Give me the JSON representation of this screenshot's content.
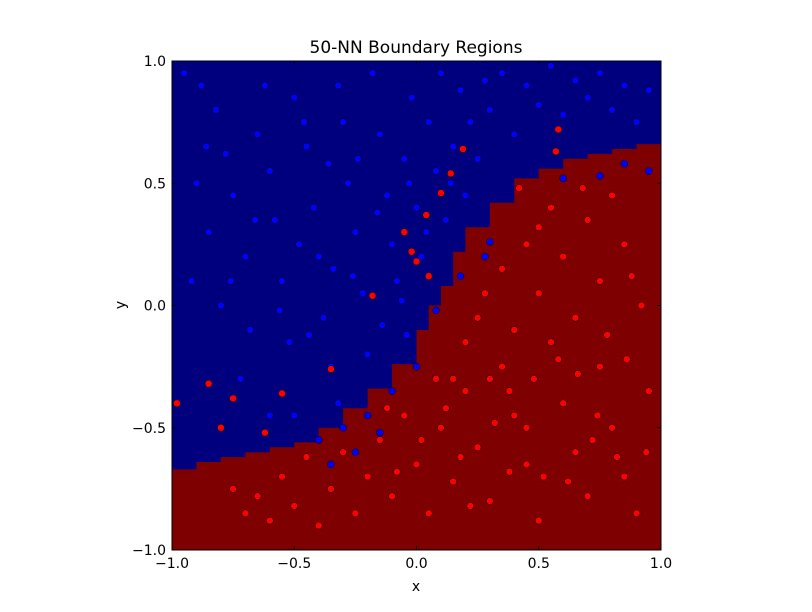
{
  "chart_data": {
    "type": "scatter",
    "title": "50-NN Boundary Regions",
    "xlabel": "x",
    "ylabel": "y",
    "xlim": [
      -1.0,
      1.0
    ],
    "ylim": [
      -1.0,
      1.0
    ],
    "x_ticks": [
      "−1.0",
      "−0.5",
      "0.0",
      "0.5",
      "1.0"
    ],
    "y_ticks": [
      "−1.0",
      "−0.5",
      "0.0",
      "0.5",
      "1.0"
    ],
    "x_tick_values": [
      -1.0,
      -0.5,
      0.0,
      0.5,
      1.0
    ],
    "y_tick_values": [
      -1.0,
      -0.5,
      0.0,
      0.5,
      1.0
    ],
    "grid": false,
    "background": {
      "type": "decision_regions",
      "upper_region_color": "#00007f",
      "lower_region_color": "#7f0000",
      "boundary": [
        [
          -1.0,
          -0.67
        ],
        [
          -0.9,
          -0.64
        ],
        [
          -0.8,
          -0.62
        ],
        [
          -0.7,
          -0.6
        ],
        [
          -0.6,
          -0.58
        ],
        [
          -0.5,
          -0.56
        ],
        [
          -0.4,
          -0.5
        ],
        [
          -0.3,
          -0.42
        ],
        [
          -0.2,
          -0.34
        ],
        [
          -0.1,
          -0.24
        ],
        [
          0.0,
          -0.1
        ],
        [
          0.05,
          0.0
        ],
        [
          0.1,
          0.08
        ],
        [
          0.15,
          0.22
        ],
        [
          0.2,
          0.32
        ],
        [
          0.3,
          0.42
        ],
        [
          0.4,
          0.52
        ],
        [
          0.5,
          0.56
        ],
        [
          0.6,
          0.6
        ],
        [
          0.7,
          0.62
        ],
        [
          0.8,
          0.64
        ],
        [
          0.9,
          0.66
        ],
        [
          1.0,
          0.7
        ]
      ]
    },
    "series": [
      {
        "color": "#0000ff",
        "points": [
          [
            -0.95,
            0.95
          ],
          [
            -0.88,
            0.9
          ],
          [
            -0.82,
            0.8
          ],
          [
            -0.78,
            0.62
          ],
          [
            -0.9,
            0.5
          ],
          [
            -0.85,
            0.3
          ],
          [
            -0.92,
            0.1
          ],
          [
            -0.8,
            0.0
          ],
          [
            -0.75,
            0.45
          ],
          [
            -0.7,
            0.2
          ],
          [
            -0.68,
            -0.1
          ],
          [
            -0.72,
            -0.3
          ],
          [
            -0.65,
            0.7
          ],
          [
            -0.6,
            0.55
          ],
          [
            -0.58,
            0.35
          ],
          [
            -0.55,
            0.1
          ],
          [
            -0.52,
            -0.15
          ],
          [
            -0.5,
            0.85
          ],
          [
            -0.45,
            0.65
          ],
          [
            -0.42,
            0.4
          ],
          [
            -0.4,
            0.2
          ],
          [
            -0.38,
            -0.05
          ],
          [
            -0.35,
            -0.25
          ],
          [
            -0.32,
            0.9
          ],
          [
            -0.3,
            0.75
          ],
          [
            -0.28,
            0.5
          ],
          [
            -0.25,
            0.3
          ],
          [
            -0.22,
            0.05
          ],
          [
            -0.2,
            -0.2
          ],
          [
            -0.18,
            0.95
          ],
          [
            -0.15,
            0.7
          ],
          [
            -0.12,
            0.45
          ],
          [
            -0.1,
            0.25
          ],
          [
            -0.08,
            0.1
          ],
          [
            -0.05,
            0.6
          ],
          [
            -0.02,
            0.85
          ],
          [
            0.0,
            0.4
          ],
          [
            0.02,
            0.2
          ],
          [
            0.05,
            0.75
          ],
          [
            0.08,
            0.55
          ],
          [
            0.1,
            0.95
          ],
          [
            0.12,
            0.35
          ],
          [
            0.15,
            0.65
          ],
          [
            0.18,
            0.88
          ],
          [
            0.2,
            0.45
          ],
          [
            0.22,
            0.75
          ],
          [
            0.25,
            0.6
          ],
          [
            0.28,
            0.92
          ],
          [
            0.3,
            0.8
          ],
          [
            0.35,
            0.95
          ],
          [
            0.4,
            0.7
          ],
          [
            0.45,
            0.9
          ],
          [
            0.5,
            0.82
          ],
          [
            0.55,
            0.98
          ],
          [
            0.6,
            0.78
          ],
          [
            0.65,
            0.92
          ],
          [
            0.7,
            0.85
          ],
          [
            0.75,
            0.95
          ],
          [
            0.8,
            0.8
          ],
          [
            0.85,
            0.9
          ],
          [
            0.9,
            0.75
          ],
          [
            0.95,
            0.88
          ],
          [
            -0.62,
            0.9
          ],
          [
            -0.48,
            0.25
          ],
          [
            -0.44,
            -0.12
          ],
          [
            -0.36,
            0.58
          ],
          [
            -0.26,
            0.12
          ],
          [
            -0.16,
            0.38
          ],
          [
            -0.06,
            0.02
          ],
          [
            -0.03,
            0.5
          ],
          [
            0.04,
            0.3
          ],
          [
            0.14,
            0.5
          ],
          [
            -0.86,
            0.65
          ],
          [
            -0.76,
            0.1
          ],
          [
            -0.66,
            0.35
          ],
          [
            -0.56,
            -0.02
          ],
          [
            -0.46,
            0.75
          ],
          [
            -0.34,
            0.15
          ],
          [
            -0.24,
            0.6
          ],
          [
            -0.14,
            -0.08
          ],
          [
            0.85,
            0.58
          ],
          [
            0.95,
            0.55
          ],
          [
            0.75,
            0.53
          ],
          [
            0.6,
            0.52
          ],
          [
            0.3,
            0.26
          ],
          [
            0.28,
            0.2
          ],
          [
            0.0,
            -0.25
          ],
          [
            -0.1,
            -0.35
          ],
          [
            -0.2,
            -0.45
          ],
          [
            -0.3,
            -0.5
          ],
          [
            -0.35,
            -0.65
          ],
          [
            -0.25,
            -0.6
          ],
          [
            -0.15,
            -0.52
          ],
          [
            -0.5,
            -0.45
          ],
          [
            -0.6,
            -0.45
          ],
          [
            -0.4,
            -0.55
          ],
          [
            -0.32,
            -0.4
          ],
          [
            0.18,
            0.12
          ],
          [
            0.08,
            -0.02
          ],
          [
            -0.04,
            -0.12
          ]
        ]
      },
      {
        "color": "#ff0000",
        "points": [
          [
            -0.98,
            -0.4
          ],
          [
            -0.85,
            -0.32
          ],
          [
            -0.8,
            -0.5
          ],
          [
            -0.75,
            -0.75
          ],
          [
            -0.7,
            -0.85
          ],
          [
            -0.65,
            -0.78
          ],
          [
            -0.6,
            -0.88
          ],
          [
            -0.55,
            -0.7
          ],
          [
            -0.5,
            -0.82
          ],
          [
            -0.45,
            -0.62
          ],
          [
            -0.4,
            -0.9
          ],
          [
            -0.35,
            -0.75
          ],
          [
            -0.3,
            -0.6
          ],
          [
            -0.25,
            -0.85
          ],
          [
            -0.2,
            -0.7
          ],
          [
            -0.15,
            -0.55
          ],
          [
            -0.1,
            -0.78
          ],
          [
            -0.05,
            -0.45
          ],
          [
            0.0,
            -0.65
          ],
          [
            0.05,
            -0.85
          ],
          [
            0.1,
            -0.5
          ],
          [
            0.15,
            -0.72
          ],
          [
            0.2,
            -0.35
          ],
          [
            0.25,
            -0.58
          ],
          [
            0.3,
            -0.8
          ],
          [
            0.35,
            -0.25
          ],
          [
            0.4,
            -0.45
          ],
          [
            0.45,
            -0.65
          ],
          [
            0.5,
            -0.88
          ],
          [
            0.55,
            -0.15
          ],
          [
            0.6,
            -0.4
          ],
          [
            0.65,
            -0.6
          ],
          [
            0.7,
            -0.78
          ],
          [
            0.75,
            -0.25
          ],
          [
            0.8,
            -0.5
          ],
          [
            0.85,
            -0.7
          ],
          [
            0.9,
            -0.85
          ],
          [
            0.95,
            -0.35
          ],
          [
            0.92,
            0.0
          ],
          [
            0.85,
            0.25
          ],
          [
            0.8,
            0.45
          ],
          [
            0.75,
            0.1
          ],
          [
            0.7,
            0.35
          ],
          [
            0.65,
            -0.05
          ],
          [
            0.6,
            0.2
          ],
          [
            0.55,
            0.4
          ],
          [
            0.5,
            0.05
          ],
          [
            0.45,
            0.25
          ],
          [
            0.4,
            -0.1
          ],
          [
            0.35,
            0.15
          ],
          [
            0.3,
            -0.3
          ],
          [
            0.25,
            -0.05
          ],
          [
            0.2,
            -0.15
          ],
          [
            0.15,
            -0.3
          ],
          [
            0.58,
            0.72
          ],
          [
            0.57,
            0.63
          ],
          [
            0.19,
            0.64
          ],
          [
            0.14,
            0.54
          ],
          [
            0.1,
            0.46
          ],
          [
            0.04,
            0.37
          ],
          [
            -0.05,
            0.3
          ],
          [
            -0.02,
            0.22
          ],
          [
            0.0,
            0.18
          ],
          [
            0.05,
            0.12
          ],
          [
            -0.35,
            -0.26
          ],
          [
            -0.18,
            0.04
          ],
          [
            -0.75,
            -0.38
          ],
          [
            -0.55,
            -0.36
          ],
          [
            -0.62,
            -0.52
          ],
          [
            0.42,
            0.48
          ],
          [
            0.5,
            0.32
          ],
          [
            0.68,
            0.48
          ],
          [
            0.88,
            0.12
          ],
          [
            0.72,
            -0.55
          ],
          [
            0.62,
            -0.72
          ],
          [
            0.38,
            -0.68
          ],
          [
            0.22,
            -0.82
          ],
          [
            0.12,
            -0.42
          ],
          [
            0.02,
            -0.55
          ],
          [
            -0.08,
            -0.68
          ],
          [
            0.48,
            -0.3
          ],
          [
            0.58,
            -0.22
          ],
          [
            0.78,
            -0.12
          ],
          [
            0.82,
            -0.62
          ],
          [
            0.32,
            -0.48
          ],
          [
            0.18,
            -0.62
          ],
          [
            0.08,
            -0.3
          ],
          [
            -0.12,
            -0.42
          ],
          [
            0.28,
            0.05
          ],
          [
            0.38,
            -0.35
          ],
          [
            0.45,
            -0.5
          ],
          [
            0.52,
            -0.7
          ],
          [
            0.66,
            -0.28
          ],
          [
            0.74,
            -0.45
          ],
          [
            0.86,
            -0.22
          ],
          [
            0.94,
            -0.6
          ]
        ]
      }
    ]
  }
}
